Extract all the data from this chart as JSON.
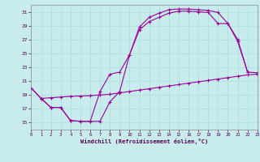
{
  "background_color": "#c8ecec",
  "line_color": "#990099",
  "grid_color": "#aadddd",
  "xlabel": "Windchill (Refroidissement éolien,°C)",
  "xlim": [
    0,
    23
  ],
  "ylim": [
    14,
    32
  ],
  "yticks": [
    15,
    17,
    19,
    21,
    23,
    25,
    27,
    29,
    31
  ],
  "xticks": [
    0,
    1,
    2,
    3,
    4,
    5,
    6,
    7,
    8,
    9,
    10,
    11,
    12,
    13,
    14,
    15,
    16,
    17,
    18,
    19,
    20,
    21,
    22,
    23
  ],
  "line1_x": [
    0,
    1,
    2,
    3,
    4,
    5,
    6,
    7,
    8,
    9,
    10,
    11,
    12,
    13,
    14,
    15,
    16,
    17,
    18,
    19,
    20,
    21,
    22
  ],
  "line1_y": [
    20.0,
    18.5,
    17.2,
    17.2,
    15.3,
    15.2,
    15.2,
    15.2,
    18.0,
    19.5,
    24.8,
    28.8,
    30.2,
    30.8,
    31.3,
    31.4,
    31.4,
    31.3,
    31.2,
    30.9,
    29.3,
    27.0,
    22.3
  ],
  "line2_x": [
    0,
    1,
    2,
    3,
    4,
    5,
    6,
    7,
    8,
    9,
    10,
    11,
    12,
    13,
    14,
    15,
    16,
    17,
    18,
    19,
    20,
    21,
    22,
    23
  ],
  "line2_y": [
    20.0,
    18.5,
    17.2,
    17.2,
    15.3,
    15.2,
    15.2,
    19.5,
    22.0,
    22.3,
    24.8,
    28.4,
    29.6,
    30.2,
    30.8,
    31.1,
    31.1,
    31.0,
    30.9,
    29.3,
    29.3,
    26.7,
    22.3,
    22.2
  ],
  "line3_x": [
    1,
    2,
    3,
    4,
    5,
    6,
    7,
    8,
    9,
    10,
    11,
    12,
    13,
    14,
    15,
    16,
    17,
    18,
    19,
    20,
    21,
    22,
    23
  ],
  "line3_y": [
    18.5,
    18.6,
    18.7,
    18.8,
    18.85,
    18.9,
    19.0,
    19.1,
    19.3,
    19.5,
    19.7,
    19.9,
    20.1,
    20.3,
    20.5,
    20.7,
    20.9,
    21.1,
    21.3,
    21.5,
    21.7,
    21.9,
    22.0
  ]
}
